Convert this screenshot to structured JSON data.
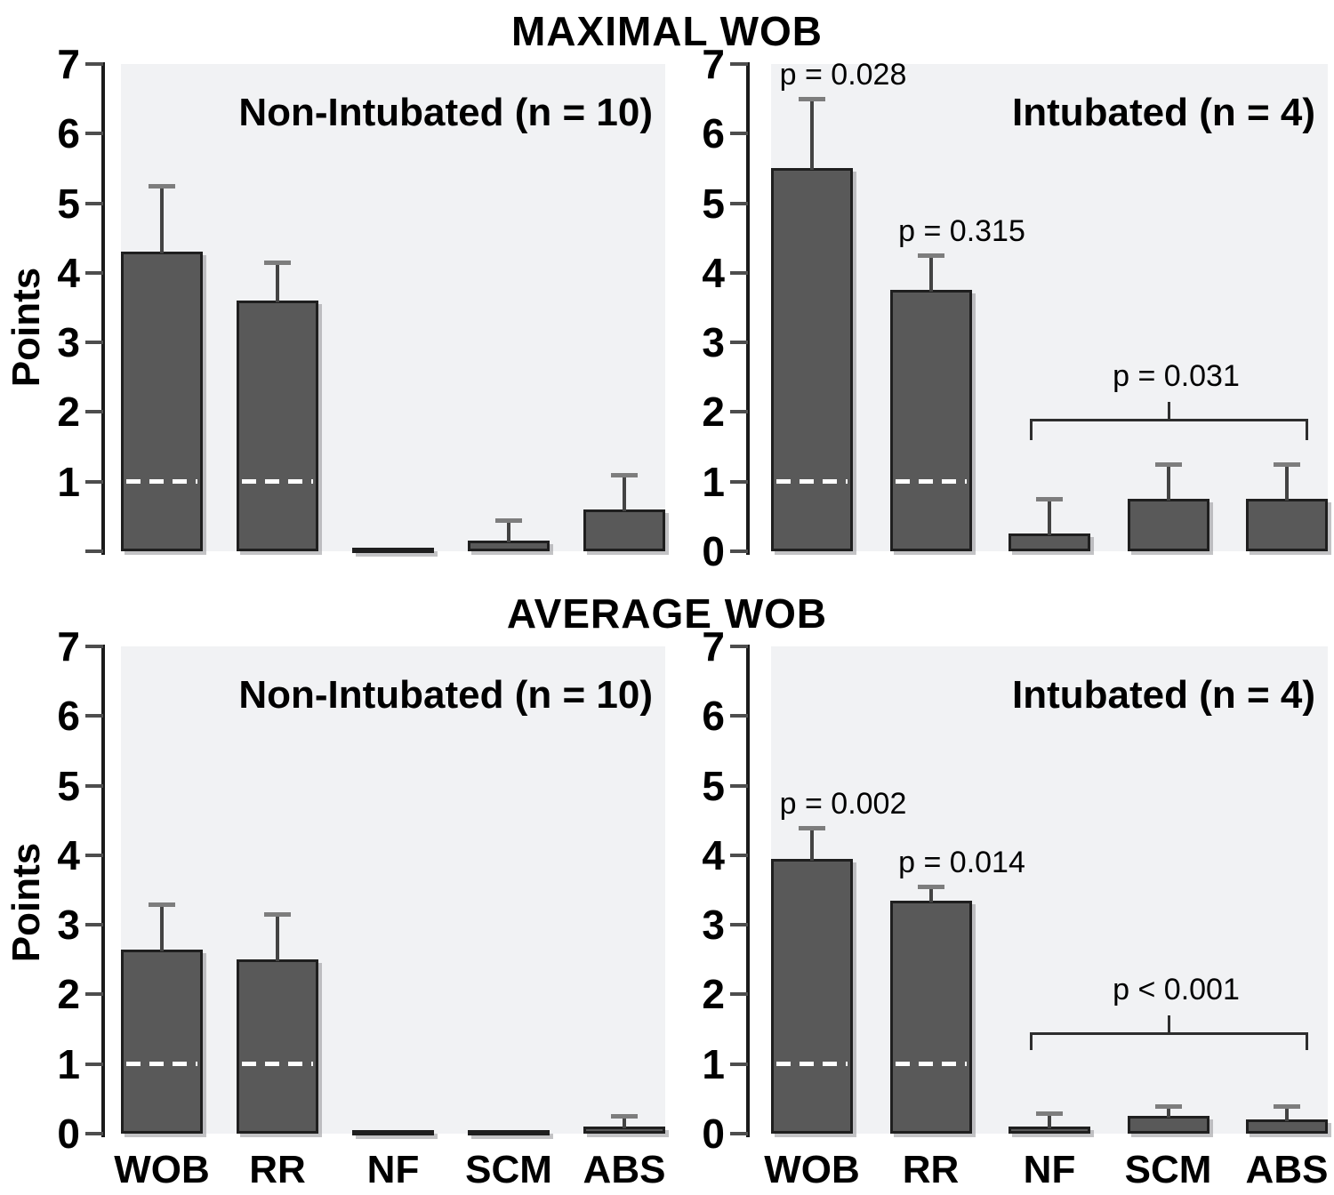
{
  "figure": {
    "titles": {
      "maximal": "MAXIMAL WOB",
      "average": "AVERAGE WOB"
    },
    "ylabel": "Points",
    "categories": [
      "WOB",
      "RR",
      "NF",
      "SCM",
      "ABS"
    ],
    "colors": {
      "bar_fill": "#595959",
      "bar_border": "#1f1f1f",
      "plot_background": "#f1f2f4",
      "page_background": "#ffffff",
      "reference_line": "#ffffff",
      "text": "#000000"
    }
  },
  "chart_data": [
    {
      "id": "maximal-non-intubated",
      "type": "bar",
      "row": "top",
      "col": "left",
      "section_title": "MAXIMAL WOB",
      "heading": "Non-Intubated (n = 10)",
      "ylabel": "Points",
      "ylim": [
        0,
        7
      ],
      "yticks": [
        0,
        1,
        2,
        3,
        4,
        5,
        6,
        7
      ],
      "show_zero_tick_label": false,
      "show_x_labels": false,
      "reference_line_y": 1,
      "categories": [
        "WOB",
        "RR",
        "NF",
        "SCM",
        "ABS"
      ],
      "values": [
        4.3,
        3.6,
        0.05,
        0.15,
        0.6
      ],
      "error_tops": [
        5.25,
        4.15,
        null,
        0.45,
        1.1
      ],
      "p_annotations": [],
      "bracket": null
    },
    {
      "id": "maximal-intubated",
      "type": "bar",
      "row": "top",
      "col": "right",
      "section_title": "MAXIMAL WOB",
      "heading": "Intubated (n = 4)",
      "ylabel": "Points",
      "ylim": [
        0,
        7
      ],
      "yticks": [
        0,
        1,
        2,
        3,
        4,
        5,
        6,
        7
      ],
      "show_zero_tick_label": true,
      "show_x_labels": false,
      "reference_line_y": 1,
      "categories": [
        "WOB",
        "RR",
        "NF",
        "SCM",
        "ABS"
      ],
      "values": [
        5.5,
        3.75,
        0.25,
        0.75,
        0.75
      ],
      "error_tops": [
        6.5,
        4.25,
        0.75,
        1.25,
        1.25
      ],
      "p_annotations": [
        {
          "category": "WOB",
          "text": "p = 0.028"
        },
        {
          "category": "RR",
          "text": "p = 0.315"
        }
      ],
      "bracket": {
        "text": "p = 0.031",
        "from": "NF",
        "to": "ABS",
        "line_y": 1.9,
        "drop_y": 1.6,
        "tick_y": 2.15
      }
    },
    {
      "id": "average-non-intubated",
      "type": "bar",
      "row": "bottom",
      "col": "left",
      "section_title": "AVERAGE WOB",
      "heading": "Non-Intubated (n = 10)",
      "ylabel": "Points",
      "ylim": [
        0,
        7
      ],
      "yticks": [
        0,
        1,
        2,
        3,
        4,
        5,
        6,
        7
      ],
      "show_zero_tick_label": true,
      "show_x_labels": true,
      "reference_line_y": 1,
      "categories": [
        "WOB",
        "RR",
        "NF",
        "SCM",
        "ABS"
      ],
      "values": [
        2.65,
        2.5,
        0.05,
        0.05,
        0.1
      ],
      "error_tops": [
        3.3,
        3.15,
        null,
        null,
        0.25
      ],
      "p_annotations": [],
      "bracket": null
    },
    {
      "id": "average-intubated",
      "type": "bar",
      "row": "bottom",
      "col": "right",
      "section_title": "AVERAGE WOB",
      "heading": "Intubated (n = 4)",
      "ylabel": "Points",
      "ylim": [
        0,
        7
      ],
      "yticks": [
        0,
        1,
        2,
        3,
        4,
        5,
        6,
        7
      ],
      "show_zero_tick_label": true,
      "show_x_labels": true,
      "reference_line_y": 1,
      "categories": [
        "WOB",
        "RR",
        "NF",
        "SCM",
        "ABS"
      ],
      "values": [
        3.95,
        3.35,
        0.1,
        0.25,
        0.2
      ],
      "error_tops": [
        4.4,
        3.55,
        0.3,
        0.4,
        0.4
      ],
      "p_annotations": [
        {
          "category": "WOB",
          "text": "p = 0.002"
        },
        {
          "category": "RR",
          "text": "p = 0.014"
        }
      ],
      "bracket": {
        "text": "p < 0.001",
        "from": "NF",
        "to": "ABS",
        "line_y": 1.45,
        "drop_y": 1.2,
        "tick_y": 1.7
      }
    }
  ]
}
